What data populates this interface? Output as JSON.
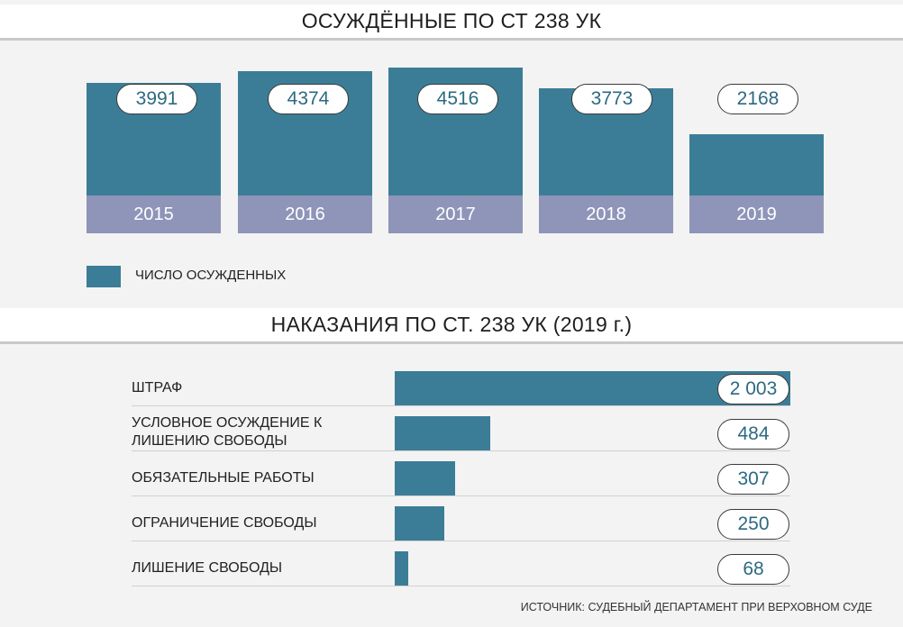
{
  "chart_data": [
    {
      "type": "bar",
      "title": "ОСУЖДЁННЫЕ ПО СТ 238 УК",
      "categories": [
        "2015",
        "2016",
        "2017",
        "2018",
        "2019"
      ],
      "series": [
        {
          "name": "ЧИСЛО ОСУЖДЕННЫХ",
          "values": [
            3991,
            4374,
            4516,
            3773,
            2168
          ]
        }
      ],
      "value_labels": [
        "3991",
        "4374",
        "4516",
        "3773",
        "2168"
      ],
      "legend_position": "bottom-left",
      "colors": {
        "bar": "#3b7d97",
        "year_band": "#8e95b8"
      }
    },
    {
      "type": "bar",
      "orientation": "horizontal",
      "title": "НАКАЗАНИЯ ПО СТ. 238 УК (2019 г.)",
      "categories": [
        "ШТРАФ",
        "УСЛОВНОЕ ОСУЖДЕНИЕ К ЛИШЕНИЮ СВОБОДЫ",
        "ОБЯЗАТЕЛЬНЫЕ РАБОТЫ",
        "ОГРАНИЧЕНИЕ СВОБОДЫ",
        "ЛИШЕНИЕ СВОБОДЫ"
      ],
      "values": [
        2003,
        484,
        307,
        250,
        68
      ],
      "value_labels": [
        "2 003",
        "484",
        "307",
        "250",
        "68"
      ],
      "colors": {
        "bar": "#3b7d97"
      }
    }
  ],
  "source": "ИСТОЧНИК: СУДЕБНЫЙ ДЕПАРТАМЕНТ ПРИ ВЕРХОВНОМ СУДЕ"
}
